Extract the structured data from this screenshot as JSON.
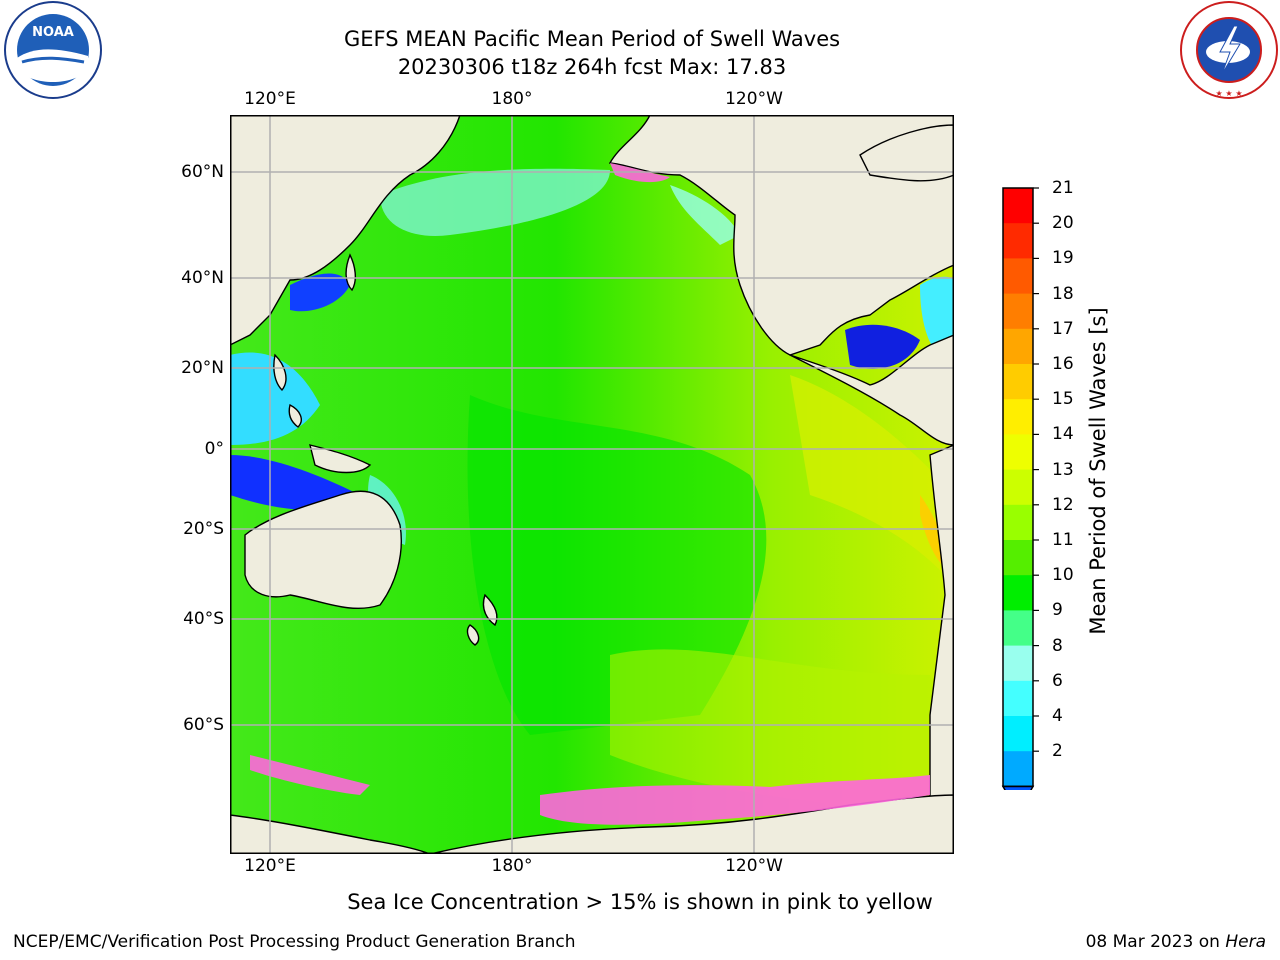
{
  "header": {
    "title_line1": "GEFS MEAN Pacific Mean Period of Swell Waves",
    "title_line2": "20230306 t18z 264h fcst   Max: 17.83"
  },
  "logos": {
    "left": {
      "name": "NOAA",
      "text": "NOAA"
    },
    "right": {
      "name": "NATIONAL WEATHER SERVICE",
      "text": "NATIONAL WEATHER SERVICE"
    }
  },
  "map": {
    "lon_labels": [
      "120°E",
      "180°",
      "120°W"
    ],
    "lat_labels": [
      "60°N",
      "40°N",
      "20°N",
      "0°",
      "20°S",
      "40°S",
      "60°S"
    ],
    "colors": {
      "land": "#efedde",
      "grid": "#b0b0b0",
      "coast": "#000000",
      "sea_ice_pink": "#ff66dd"
    }
  },
  "colorbar": {
    "title": "Mean Period of Swell Waves [s]",
    "labels": [
      "21",
      "20",
      "19",
      "18",
      "17",
      "16",
      "15",
      "14",
      "13",
      "12",
      "11",
      "10",
      "9",
      "8",
      "6",
      "4",
      "2"
    ],
    "colors": [
      "#ff0000",
      "#ff2a00",
      "#ff5a00",
      "#ff7e00",
      "#ffa600",
      "#ffcc00",
      "#ffee00",
      "#eeff00",
      "#ccff00",
      "#99ff00",
      "#55ee00",
      "#00ee00",
      "#44ff88",
      "#99ffee",
      "#44ffff",
      "#00eeff",
      "#00aaff",
      "#0055ff"
    ]
  },
  "note": "Sea Ice Concentration > 15% is shown in pink to yellow",
  "footer": {
    "left": "NCEP/EMC/Verification Post Processing Product Generation Branch",
    "right_date": "08 Mar 2023 on ",
    "right_machine": "Hera"
  }
}
